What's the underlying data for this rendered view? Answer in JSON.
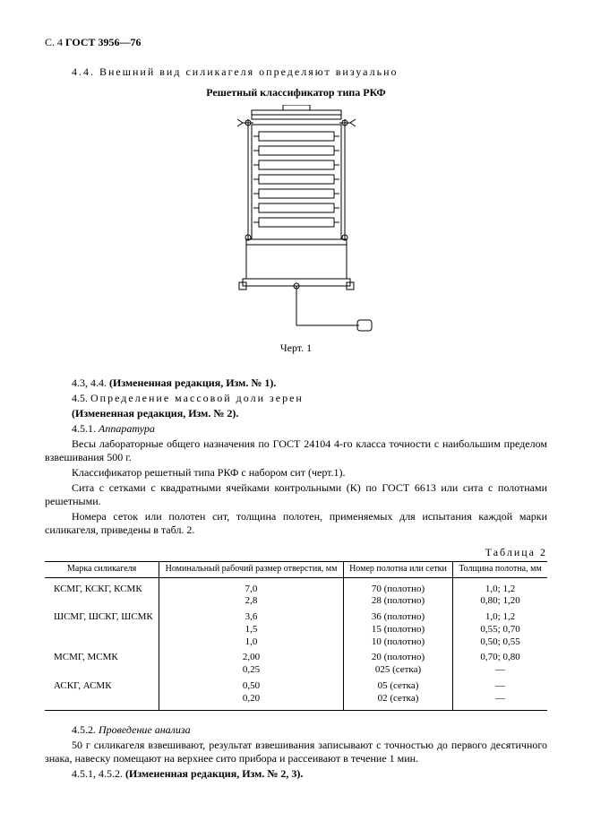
{
  "header": {
    "page": "С. 4",
    "gost": "ГОСТ 3956—76"
  },
  "section44": "4.4. Внешний вид силикагеля определяют визуально",
  "figure": {
    "title": "Решетный классификатор типа РКФ",
    "caption": "Черт. 1",
    "style": {
      "stroke": "#000000",
      "fill": "#ffffff",
      "hatch_fill": "#000000"
    }
  },
  "body": {
    "p1": "4.3, 4.4. ",
    "p1b": "(Измененная редакция, Изм. № 1).",
    "p2a": "4.5. ",
    "p2b": "Определение массовой доли зерен",
    "p3": "(Измененная редакция, Изм. № 2).",
    "p4a": "4.5.1. ",
    "p4b": "Аппаратура",
    "p5": "Весы лабораторные общего назначения по ГОСТ 24104 4-го класса точности с наибольшим пределом взвешивания 500 г.",
    "p6": "Классификатор решетный типа РКФ с набором сит (черт.1).",
    "p7": "Сита с сетками с квадратными ячейками контрольными (К) по ГОСТ 6613 или сита с полотнами решетными.",
    "p8": "Номера сеток или полотен сит, толщина полотен, применяемых для испытания каждой марки силикагеля, приведены в табл. 2."
  },
  "table": {
    "label": "Таблица 2",
    "columns": [
      "Марка силикагеля",
      "Номинальный рабочий размер отверстия, мм",
      "Номер полотна или сетки",
      "Толщина полотна, мм"
    ],
    "rows": [
      [
        "КСМГ, КСКГ, КСМК",
        "7,0\n2,8",
        "70 (полотно)\n28 (полотно)",
        "1,0; 1,2\n0,80; 1,20"
      ],
      [
        "ШСМГ, ШСКГ, ШСМК",
        "3,6\n1,5\n1,0",
        "36 (полотно)\n15 (полотно)\n10 (полотно)",
        "1,0; 1,2\n0,55; 0,70\n0,50; 0,55"
      ],
      [
        "МСМГ, МСМК",
        "2,00\n0,25",
        "20 (полотно)\n025 (сетка)",
        "0,70; 0,80\n—"
      ],
      [
        "АСКГ, АСМК",
        "0,50\n0,20",
        "05 (сетка)\n02 (сетка)",
        "—\n—"
      ]
    ]
  },
  "after": {
    "p1a": "4.5.2. ",
    "p1b": "Проведение анализа",
    "p2": "50 г силикагеля взвешивают, результат взвешивания записывают с точностью до первого десятичного знака, навеску помещают на верхнее сито прибора и рассеивают в течение 1 мин.",
    "p3a": "4.5.1, 4.5.2. ",
    "p3b": "(Измененная редакция, Изм. № 2, 3)."
  }
}
